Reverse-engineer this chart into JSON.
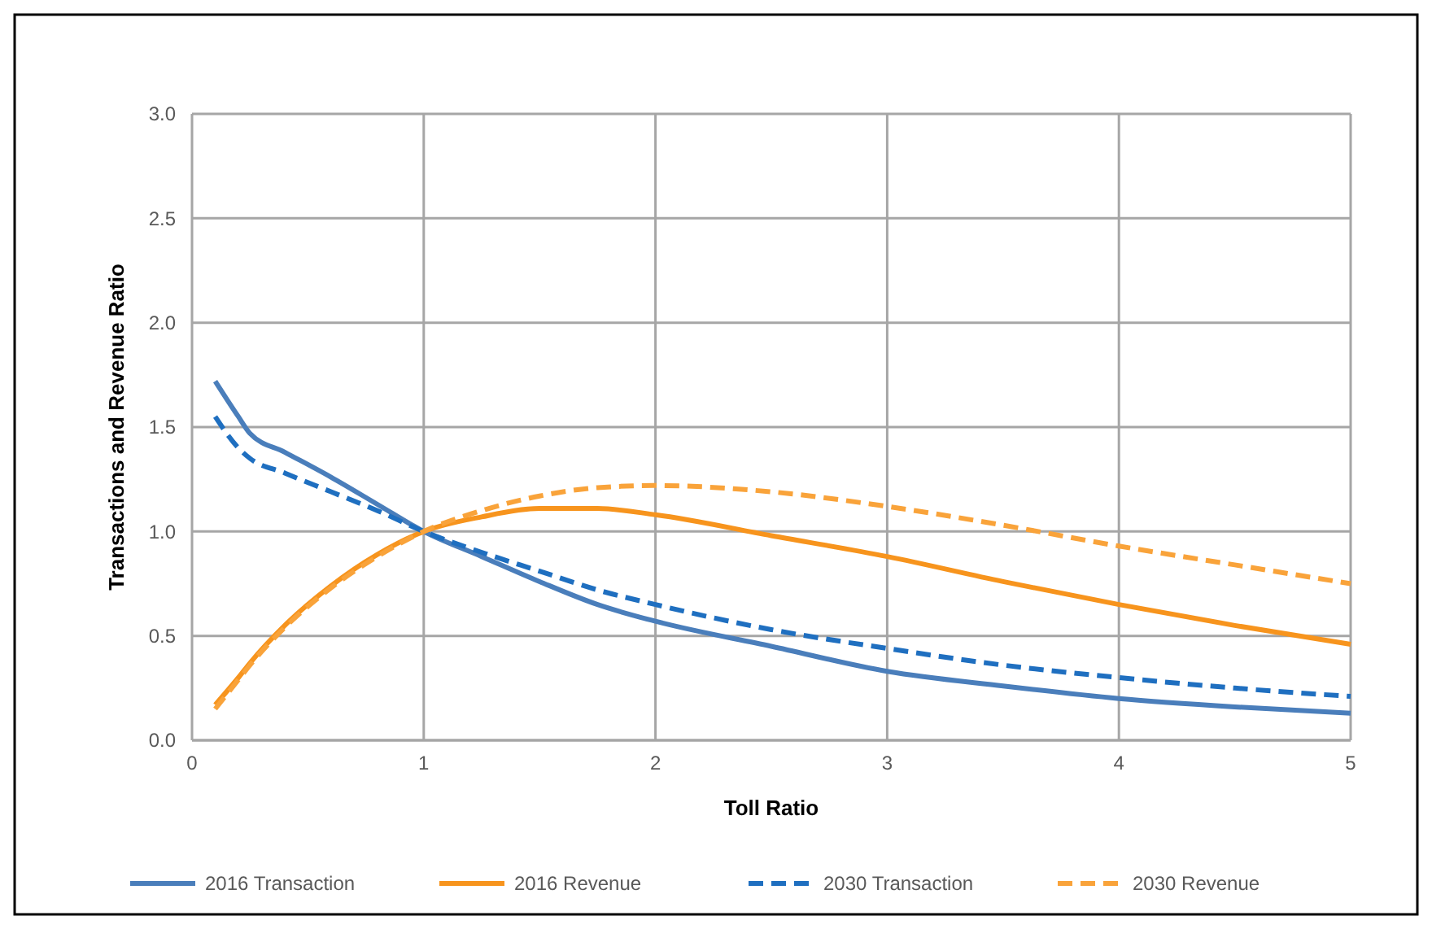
{
  "chart_data": {
    "type": "line",
    "xlabel": "Toll Ratio",
    "ylabel": "Transactions and Revenue Ratio",
    "x": [
      0.1,
      0.2,
      0.25,
      0.4,
      0.6,
      0.8,
      1,
      1.25,
      1.5,
      1.75,
      2,
      2.5,
      3,
      3.5,
      4,
      4.5,
      5
    ],
    "xlim": [
      0,
      5
    ],
    "xticks": [
      0,
      1,
      2,
      3,
      4,
      5
    ],
    "ylim": [
      0,
      3
    ],
    "yticks": [
      {
        "value": 0,
        "label": "0.0"
      },
      {
        "value": 0.5,
        "label": "0.5"
      },
      {
        "value": 1,
        "label": "1.0"
      },
      {
        "value": 1.5,
        "label": "1.5"
      },
      {
        "value": 2,
        "label": "2.0"
      },
      {
        "value": 2.5,
        "label": "2.5"
      },
      {
        "value": 3,
        "label": "3.0"
      }
    ],
    "grid": true,
    "legend": "bottom",
    "marker": "none",
    "series": [
      {
        "name": "2016 Transaction",
        "color": "#4a7ebb",
        "line_style": "solid",
        "values": [
          1.72,
          1.55,
          1.47,
          1.38,
          1.26,
          1.13,
          1.0,
          0.88,
          0.76,
          0.65,
          0.57,
          0.45,
          0.33,
          0.26,
          0.2,
          0.16,
          0.13
        ]
      },
      {
        "name": "2016 Revenue",
        "color": "#f7941d",
        "line_style": "solid",
        "values": [
          0.17,
          0.3,
          0.37,
          0.55,
          0.74,
          0.89,
          1.0,
          1.07,
          1.11,
          1.11,
          1.08,
          0.98,
          0.88,
          0.76,
          0.65,
          0.55,
          0.46
        ]
      },
      {
        "name": "2030 Transaction",
        "color": "#1f6fc0",
        "line_style": "dashed",
        "values": [
          1.55,
          1.4,
          1.35,
          1.28,
          1.19,
          1.1,
          1.0,
          0.9,
          0.81,
          0.72,
          0.65,
          0.53,
          0.44,
          0.36,
          0.3,
          0.25,
          0.21
        ]
      },
      {
        "name": "2030 Revenue",
        "color": "#f9a33a",
        "line_style": "dashed",
        "values": [
          0.15,
          0.29,
          0.36,
          0.54,
          0.73,
          0.88,
          1.0,
          1.1,
          1.17,
          1.21,
          1.22,
          1.19,
          1.12,
          1.03,
          0.93,
          0.84,
          0.75
        ]
      }
    ]
  }
}
